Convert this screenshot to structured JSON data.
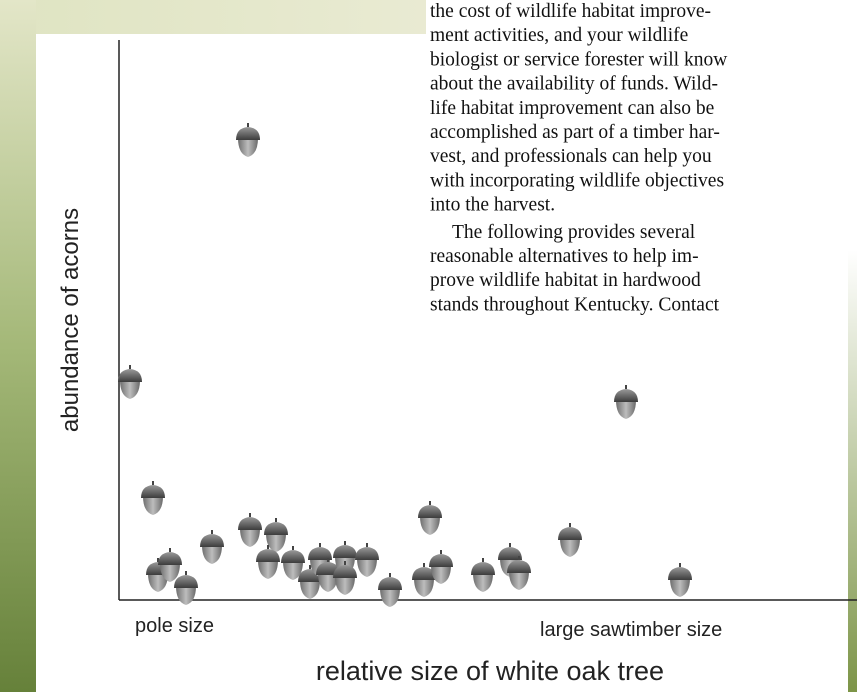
{
  "figure": {
    "y_axis_label": "abundance of acorns",
    "x_start_label": "pole size",
    "x_end_label": "large sawtimber size",
    "x_axis_label": "relative size of white oak tree"
  },
  "text": {
    "lines": [
      "the cost of wildlife habitat improve-",
      "ment activities, and your wildlife",
      "biologist or service forester will know",
      "about the availability of funds. Wild-",
      "life habitat improvement can also be",
      "accomplished as part of a timber har-",
      "vest, and professionals can help you",
      "with incorporating wildlife objectives",
      "into the harvest.",
      "The following provides several",
      "reasonable alternatives to help im-",
      "prove wildlife habitat in hardwood",
      "stands throughout Kentucky. Contact"
    ]
  }
}
